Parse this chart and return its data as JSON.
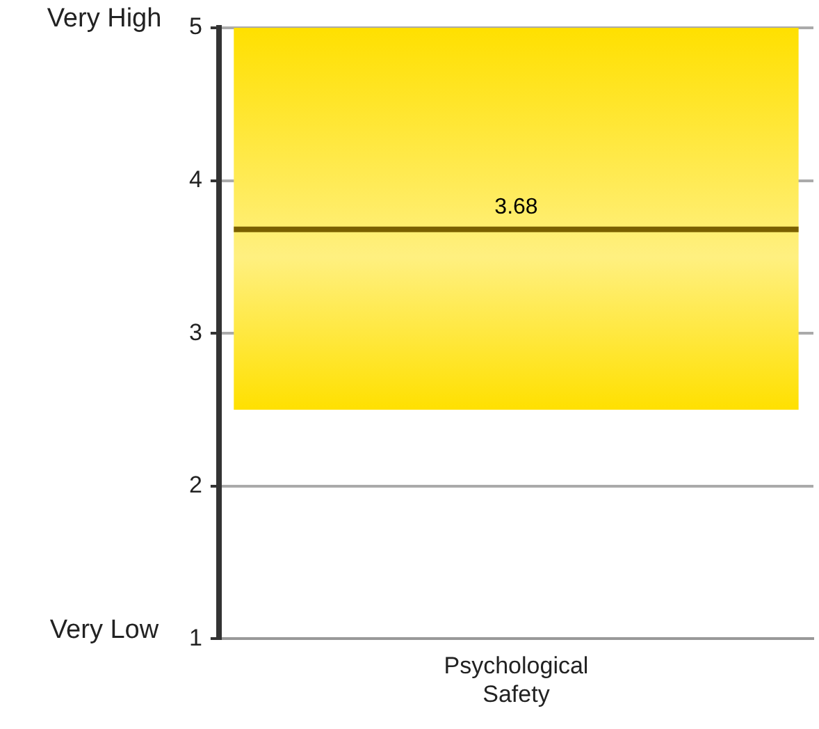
{
  "chart_data": {
    "type": "bar",
    "categories": [
      "Psychological Safety"
    ],
    "values": [
      2.5
    ],
    "base": [
      2.5
    ],
    "color": "#ffe000",
    "ylim": [
      1,
      5
    ],
    "yticks": [
      1,
      2,
      3,
      4,
      5
    ],
    "grid": "y",
    "ref_lines": [
      {
        "axis": "y",
        "value": 3.68,
        "label": "3.68",
        "color": "#7a6000"
      }
    ],
    "annotations": [
      "Very High",
      "Very Low"
    ]
  }
}
